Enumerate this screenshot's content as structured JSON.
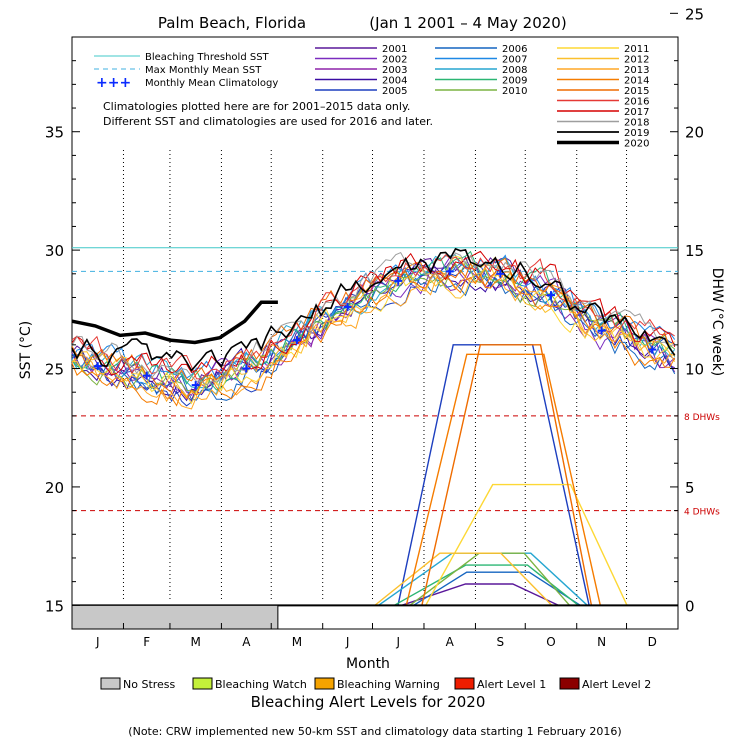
{
  "chart_data": {
    "type": "line",
    "title": "Palm Beach, Florida",
    "date_range": "(Jan 1 2001 – 4 May 2020)",
    "xlabel": "Month",
    "ylabel_left": "SST (°C)",
    "ylabel_right": "DHW (°C week)",
    "ylim_sst": [
      14,
      39
    ],
    "ylim_dhw": [
      0,
      25
    ],
    "sst_ticks": [
      "15",
      "20",
      "25",
      "30",
      "35"
    ],
    "dhw_ticks": [
      "0",
      "5",
      "10",
      "15",
      "20",
      "25"
    ],
    "months": [
      "J",
      "F",
      "M",
      "A",
      "M",
      "J",
      "J",
      "A",
      "S",
      "O",
      "N",
      "D"
    ],
    "reference_lines": {
      "bleaching_threshold_sst": 30.1,
      "max_monthly_mean_sst": 29.1,
      "dhw_4_label": "4 DHWs",
      "dhw_8_label": "8 DHWs",
      "dhw_4": 4,
      "dhw_8": 8
    },
    "monthly_mean_climatology": [
      {
        "month": "Jan",
        "sst": 25.1
      },
      {
        "month": "Feb",
        "sst": 24.7
      },
      {
        "month": "Mar",
        "sst": 24.3
      },
      {
        "month": "Apr",
        "sst": 25.0
      },
      {
        "month": "May",
        "sst": 26.2
      },
      {
        "month": "Jun",
        "sst": 27.6
      },
      {
        "month": "Jul",
        "sst": 28.7
      },
      {
        "month": "Aug",
        "sst": 29.1
      },
      {
        "month": "Sep",
        "sst": 29.0
      },
      {
        "month": "Oct",
        "sst": 28.1
      },
      {
        "month": "Nov",
        "sst": 26.6
      },
      {
        "month": "Dec",
        "sst": 25.8
      }
    ],
    "series": [
      {
        "name": "2001",
        "color": "#5a189a",
        "dhw_peak": 0.9
      },
      {
        "name": "2002",
        "color": "#7b2cbf",
        "dhw_peak": 0
      },
      {
        "name": "2003",
        "color": "#8e24aa",
        "dhw_peak": 0
      },
      {
        "name": "2004",
        "color": "#3a0ca3",
        "dhw_peak": 0
      },
      {
        "name": "2005",
        "color": "#1d3fbf",
        "dhw_peak": 11.0
      },
      {
        "name": "2006",
        "color": "#1565c0",
        "dhw_peak": 1.4
      },
      {
        "name": "2007",
        "color": "#1e88e5",
        "dhw_peak": 0
      },
      {
        "name": "2008",
        "color": "#26a6d1",
        "dhw_peak": 2.2
      },
      {
        "name": "2009",
        "color": "#2bb673",
        "dhw_peak": 1.7
      },
      {
        "name": "2010",
        "color": "#7cb342",
        "dhw_peak": 2.2
      },
      {
        "name": "2011",
        "color": "#fdd835",
        "dhw_peak": 5.1
      },
      {
        "name": "2012",
        "color": "#fbc02d",
        "dhw_peak": 2.2
      },
      {
        "name": "2013",
        "color": "#ffa726",
        "dhw_peak": 0
      },
      {
        "name": "2014",
        "color": "#f57c00",
        "dhw_peak": 10.6
      },
      {
        "name": "2015",
        "color": "#ef6c00",
        "dhw_peak": 11.0
      },
      {
        "name": "2016",
        "color": "#e53935",
        "dhw_peak": 0
      },
      {
        "name": "2017",
        "color": "#d50000",
        "dhw_peak": 0
      },
      {
        "name": "2018",
        "color": "#9e9e9e",
        "dhw_peak": 0
      },
      {
        "name": "2019",
        "color": "#000000",
        "dhw_peak": 0
      },
      {
        "name": "2020",
        "color": "#000000",
        "dhw_peak": 0
      }
    ],
    "sst_2020": [
      {
        "doy": 1,
        "sst": 27.0
      },
      {
        "doy": 15,
        "sst": 26.8
      },
      {
        "doy": 30,
        "sst": 26.4
      },
      {
        "doy": 45,
        "sst": 26.5
      },
      {
        "doy": 60,
        "sst": 26.2
      },
      {
        "doy": 75,
        "sst": 26.1
      },
      {
        "doy": 90,
        "sst": 26.3
      },
      {
        "doy": 105,
        "sst": 27.0
      },
      {
        "doy": 115,
        "sst": 27.8
      },
      {
        "doy": 125,
        "sst": 27.8
      }
    ],
    "legend": {
      "bleaching_threshold": "Bleaching Threshold SST",
      "max_monthly_mean": "Max Monthly Mean SST",
      "monthly_climatology": "Monthly Mean Climatology",
      "note_line1": "Climatologies plotted here are for 2001–2015 data only.",
      "note_line2": "Different SST and climatologies are used for 2016 and later."
    },
    "alert_legend": [
      {
        "label": "No Stress",
        "color": "#c8c8c8"
      },
      {
        "label": "Bleaching Watch",
        "color": "#c4f03a"
      },
      {
        "label": "Bleaching Warning",
        "color": "#f5a300"
      },
      {
        "label": "Alert Level 1",
        "color": "#ee1d00"
      },
      {
        "label": "Alert Level 2",
        "color": "#8b0000"
      }
    ],
    "alert_title": "Bleaching Alert Levels for 2020",
    "footnote": "(Note: CRW implemented new 50-km SST and climatology data starting 1 February 2016)",
    "status_2020": {
      "level": "No Stress",
      "through_doy": 125
    }
  },
  "colors": {
    "threshold": "#40c8c8",
    "mmm": "#40b0e0",
    "climatology": "#0a2bff",
    "dhw_ref": "#cc0000"
  }
}
